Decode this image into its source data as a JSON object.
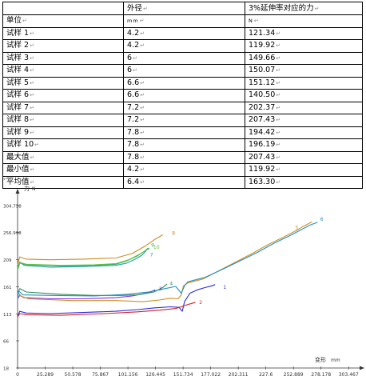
{
  "table": {
    "header": [
      "单位",
      "外径",
      "3%延伸率对应的力"
    ],
    "units": [
      "单位",
      "mm",
      "N"
    ],
    "rows": [
      [
        "试样 1",
        "4.2",
        "121.34"
      ],
      [
        "试样 2",
        "4.2",
        "119.92"
      ],
      [
        "试样 3",
        "6",
        "149.66"
      ],
      [
        "试样 4",
        "6",
        "150.07"
      ],
      [
        "试样 5",
        "6.6",
        "151.12"
      ],
      [
        "试样 6",
        "6.6",
        "140.50"
      ],
      [
        "试样 7",
        "7.2",
        "202.37"
      ],
      [
        "试样 8",
        "7.2",
        "207.43"
      ],
      [
        "试样 9",
        "7.8",
        "194.42"
      ],
      [
        "试样 10",
        "7.8",
        "196.19"
      ],
      [
        "最大值",
        "7.8",
        "207.43"
      ],
      [
        "最小值",
        "4.2",
        "119.92"
      ],
      [
        "平均值",
        "6.4",
        "163.30"
      ]
    ]
  },
  "chart_data": {
    "type": "line",
    "ylabel": "力",
    "yunit": "N",
    "xlabel": "变形",
    "xunit": "mm",
    "yticks": [
      "18",
      "66",
      "113",
      "161",
      "209",
      "256.998",
      "304.738"
    ],
    "ytick_values": [
      18,
      66,
      113,
      161,
      209,
      256.998,
      304.738
    ],
    "xticks": [
      "0",
      "25.289",
      "50.578",
      "75.867",
      "101.156",
      "126.445",
      "151.734",
      "177.022",
      "202.311",
      "227.6",
      "252.889",
      "278.178",
      "303.467"
    ],
    "xtick_values": [
      0,
      25.289,
      50.578,
      75.867,
      101.156,
      126.445,
      151.734,
      177.022,
      202.311,
      227.6,
      252.889,
      278.178,
      303.467
    ],
    "xlim": [
      0,
      315
    ],
    "ylim": [
      18,
      320
    ],
    "grid": false,
    "series": [
      {
        "name": "1",
        "color": "#2a2ad8",
        "label_at": [
          187,
          158
        ],
        "points": [
          [
            0,
            108
          ],
          [
            2,
            118
          ],
          [
            8,
            115
          ],
          [
            30,
            114
          ],
          [
            60,
            116
          ],
          [
            90,
            118
          ],
          [
            110,
            121
          ],
          [
            125,
            124
          ],
          [
            140,
            126
          ],
          [
            148,
            125
          ],
          [
            151,
            118
          ],
          [
            153,
            135
          ],
          [
            158,
            150
          ],
          [
            165,
            156
          ],
          [
            172,
            160
          ],
          [
            178,
            163
          ],
          [
            181,
            165
          ]
        ]
      },
      {
        "name": "2",
        "color": "#d62020",
        "label_at": [
          165,
          131
        ],
        "points": [
          [
            0,
            108
          ],
          [
            2,
            114
          ],
          [
            8,
            112
          ],
          [
            40,
            111
          ],
          [
            80,
            114
          ],
          [
            110,
            117
          ],
          [
            130,
            120
          ],
          [
            140,
            122
          ],
          [
            145,
            123
          ],
          [
            150,
            126
          ],
          [
            156,
            130
          ],
          [
            160,
            132
          ],
          [
            163,
            134
          ]
        ]
      },
      {
        "name": "3",
        "color": "#8a2be2",
        "label_at": [
          128,
          155
        ],
        "points": [
          [
            0,
            140
          ],
          [
            2,
            146
          ],
          [
            6,
            142
          ],
          [
            30,
            140
          ],
          [
            60,
            140
          ],
          [
            90,
            142
          ],
          [
            105,
            145
          ],
          [
            115,
            149
          ],
          [
            122,
            152
          ],
          [
            126,
            156
          ]
        ]
      },
      {
        "name": "4",
        "color": "#2e8b57",
        "label_at": [
          138,
          164
        ],
        "points": [
          [
            0,
            150
          ],
          [
            2,
            158
          ],
          [
            8,
            152
          ],
          [
            40,
            148
          ],
          [
            70,
            146
          ],
          [
            95,
            146
          ],
          [
            110,
            147
          ],
          [
            125,
            152
          ],
          [
            133,
            160
          ],
          [
            137,
            166
          ]
        ]
      },
      {
        "name": "5",
        "color": "#d09020",
        "label_at": [
          253,
          263
        ],
        "points": [
          [
            0,
            150
          ],
          [
            1,
            150
          ],
          [
            3,
            145
          ],
          [
            10,
            140
          ],
          [
            50,
            137
          ],
          [
            90,
            137
          ],
          [
            115,
            135
          ],
          [
            130,
            138
          ],
          [
            140,
            141
          ],
          [
            147,
            140
          ],
          [
            150,
            147
          ],
          [
            152,
            163
          ],
          [
            156,
            168
          ],
          [
            170,
            175
          ],
          [
            185,
            190
          ],
          [
            200,
            205
          ],
          [
            215,
            220
          ],
          [
            230,
            236
          ],
          [
            245,
            250
          ],
          [
            255,
            260
          ],
          [
            262,
            268
          ],
          [
            270,
            276
          ]
        ]
      },
      {
        "name": "6",
        "color": "#2090c0",
        "label_at": [
          276,
          278
        ],
        "points": [
          [
            0,
            140
          ],
          [
            1,
            154
          ],
          [
            5,
            147
          ],
          [
            30,
            146
          ],
          [
            70,
            145
          ],
          [
            100,
            148
          ],
          [
            120,
            152
          ],
          [
            135,
            158
          ],
          [
            145,
            162
          ],
          [
            150,
            150
          ],
          [
            153,
            163
          ],
          [
            156,
            170
          ],
          [
            172,
            178
          ],
          [
            190,
            194
          ],
          [
            205,
            208
          ],
          [
            220,
            222
          ],
          [
            235,
            238
          ],
          [
            250,
            252
          ],
          [
            260,
            262
          ],
          [
            268,
            270
          ],
          [
            275,
            275
          ]
        ]
      },
      {
        "name": "7",
        "color": "#20a0a0",
        "label_at": [
          120,
          215
        ],
        "points": [
          [
            0,
            195
          ],
          [
            2,
            205
          ],
          [
            6,
            199
          ],
          [
            30,
            196
          ],
          [
            60,
            197
          ],
          [
            90,
            199
          ],
          [
            100,
            203
          ],
          [
            108,
            210
          ],
          [
            114,
            217
          ],
          [
            118,
            225
          ]
        ]
      },
      {
        "name": "8",
        "color": "#d08a20",
        "label_at": [
          140,
          253
        ],
        "points": [
          [
            0,
            200
          ],
          [
            2,
            214
          ],
          [
            8,
            210
          ],
          [
            30,
            209
          ],
          [
            60,
            210
          ],
          [
            90,
            212
          ],
          [
            105,
            220
          ],
          [
            116,
            232
          ],
          [
            126,
            245
          ],
          [
            133,
            253
          ]
        ]
      },
      {
        "name": "9",
        "color": "#28b070",
        "label_at": [
          121,
          232
        ],
        "points": [
          [
            0,
            190
          ],
          [
            2,
            203
          ],
          [
            8,
            200
          ],
          [
            40,
            198
          ],
          [
            70,
            199
          ],
          [
            90,
            201
          ],
          [
            100,
            207
          ],
          [
            110,
            216
          ],
          [
            117,
            225
          ],
          [
            120,
            230
          ]
        ]
      },
      {
        "name": "10",
        "color": "#60c040",
        "label_at": [
          123,
          228
        ],
        "points": [
          [
            0,
            192
          ],
          [
            2,
            204
          ],
          [
            8,
            201
          ],
          [
            40,
            199
          ],
          [
            70,
            200
          ],
          [
            90,
            202
          ],
          [
            102,
            209
          ],
          [
            112,
            219
          ],
          [
            118,
            226
          ],
          [
            121,
            229
          ]
        ]
      }
    ]
  }
}
